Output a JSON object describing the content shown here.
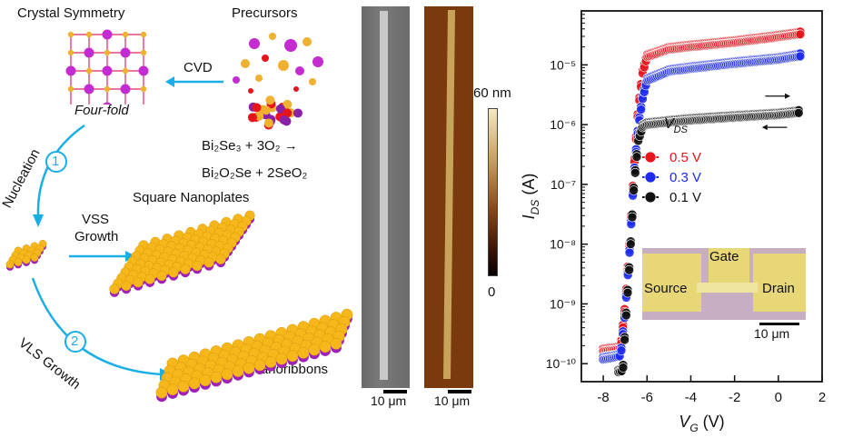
{
  "schematic": {
    "crystal_title": "Crystal Symmetry",
    "crystal_caption": "Four-fold",
    "precursors_title": "Precursors",
    "cvd_label": "CVD",
    "reaction_line1": "Bi₂Se₃ + 3O₂ →",
    "reaction_line2": "Bi₂O₂Se + 2SeO₂",
    "nucleation_label": "Nucleation",
    "step1": "1",
    "vss_label_1": "VSS",
    "vss_label_2": "Growth",
    "square_nanoplates_label": "Square Nanoplates",
    "step2": "2",
    "vls_label": "VLS Growth",
    "nanoribbons_label": "Nanoribbons"
  },
  "micrographs": {
    "sem_scalebar": "10 μm",
    "afm_scalebar": "10 μm",
    "colorbar_max": "60 nm",
    "colorbar_min": "0"
  },
  "chart_data": {
    "type": "scatter",
    "xlabel": "V_G (V)",
    "ylabel": "I_DS (A)",
    "xlim": [
      -9,
      2
    ],
    "ylim": [
      5e-11,
      8e-05
    ],
    "yscale": "log",
    "xticks": [
      -8,
      -6,
      -4,
      -2,
      0,
      2
    ],
    "yticks": [
      "10⁻¹⁰",
      "10⁻⁹",
      "10⁻⁸",
      "10⁻⁷",
      "10⁻⁶",
      "10⁻⁵"
    ],
    "legend_title": "V_DS",
    "legend_position": "middle-left",
    "series": [
      {
        "name": "0.5 V",
        "color": "#e8141c",
        "x": [
          -8.0,
          -7.5,
          -7.2,
          -7.0,
          -6.8,
          -6.6,
          -6.4,
          -6.2,
          -6.0,
          -5.0,
          -4.0,
          -2.0,
          0.0,
          1.0
        ],
        "y": [
          1.8e-10,
          1.9e-10,
          2e-10,
          1e-09,
          1e-08,
          2e-07,
          2e-06,
          8e-06,
          1.5e-05,
          2e-05,
          2.2e-05,
          2.6e-05,
          3.2e-05,
          3.6e-05
        ]
      },
      {
        "name": "0.3 V",
        "color": "#1d2bf0",
        "x": [
          -8.0,
          -7.5,
          -7.2,
          -7.0,
          -6.8,
          -6.6,
          -6.4,
          -6.2,
          -6.0,
          -5.0,
          -4.0,
          -2.0,
          0.0,
          1.0
        ],
        "y": [
          1.3e-10,
          1.4e-10,
          1.5e-10,
          8e-10,
          8e-09,
          1.5e-07,
          1e-06,
          3e-06,
          6e-06,
          8.5e-06,
          9.5e-06,
          1.15e-05,
          1.35e-05,
          1.55e-05
        ]
      },
      {
        "name": "0.1 V",
        "color": "#111111",
        "x": [
          -7.3,
          -7.1,
          -7.0,
          -6.8,
          -6.6,
          -6.4,
          -6.2,
          -6.0,
          -5.0,
          -4.0,
          -2.0,
          0.0,
          1.0
        ],
        "y": [
          8e-11,
          8.5e-11,
          4e-10,
          5e-09,
          1e-07,
          6e-07,
          1e-06,
          1.1e-06,
          1.2e-06,
          1.3e-06,
          1.45e-06,
          1.6e-06,
          1.75e-06
        ]
      }
    ],
    "inset": {
      "labels": [
        "Gate",
        "Source",
        "Drain"
      ],
      "scalebar": "10 μm"
    }
  }
}
